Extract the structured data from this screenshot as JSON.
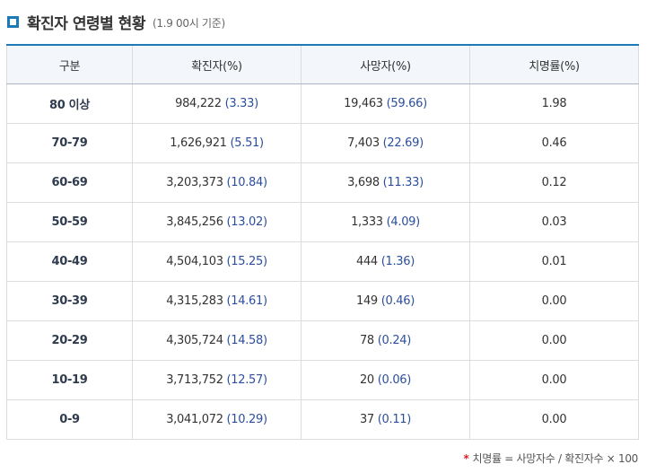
{
  "heading": {
    "title": "확진자 연령별 현황",
    "subtitle": "(1.9 00시 기준)"
  },
  "table": {
    "columns": [
      "구분",
      "확진자(%)",
      "사망자(%)",
      "치명률(%)"
    ],
    "rows": [
      {
        "age": "80 이상",
        "cases": "984,222",
        "cases_pct": "(3.33)",
        "deaths": "19,463",
        "deaths_pct": "(59.66)",
        "cfr": "1.98"
      },
      {
        "age": "70-79",
        "cases": "1,626,921",
        "cases_pct": "(5.51)",
        "deaths": "7,403",
        "deaths_pct": "(22.69)",
        "cfr": "0.46"
      },
      {
        "age": "60-69",
        "cases": "3,203,373",
        "cases_pct": "(10.84)",
        "deaths": "3,698",
        "deaths_pct": "(11.33)",
        "cfr": "0.12"
      },
      {
        "age": "50-59",
        "cases": "3,845,256",
        "cases_pct": "(13.02)",
        "deaths": "1,333",
        "deaths_pct": "(4.09)",
        "cfr": "0.03"
      },
      {
        "age": "40-49",
        "cases": "4,504,103",
        "cases_pct": "(15.25)",
        "deaths": "444",
        "deaths_pct": "(1.36)",
        "cfr": "0.01"
      },
      {
        "age": "30-39",
        "cases": "4,315,283",
        "cases_pct": "(14.61)",
        "deaths": "149",
        "deaths_pct": "(0.46)",
        "cfr": "0.00"
      },
      {
        "age": "20-29",
        "cases": "4,305,724",
        "cases_pct": "(14.58)",
        "deaths": "78",
        "deaths_pct": "(0.24)",
        "cfr": "0.00"
      },
      {
        "age": "10-19",
        "cases": "3,713,752",
        "cases_pct": "(12.57)",
        "deaths": "20",
        "deaths_pct": "(0.06)",
        "cfr": "0.00"
      },
      {
        "age": "0-9",
        "cases": "3,041,072",
        "cases_pct": "(10.29)",
        "deaths": "37",
        "deaths_pct": "(0.11)",
        "cfr": "0.00"
      }
    ]
  },
  "footnote": {
    "marker": "*",
    "text": "치명률 = 사망자수 / 확진자수 × 100"
  },
  "colors": {
    "accent": "#1b7bb6",
    "value_blue": "#2b4f9e",
    "footnote_marker": "#e0202a"
  },
  "icons": {
    "heading_icon": "square-bullet-icon"
  }
}
